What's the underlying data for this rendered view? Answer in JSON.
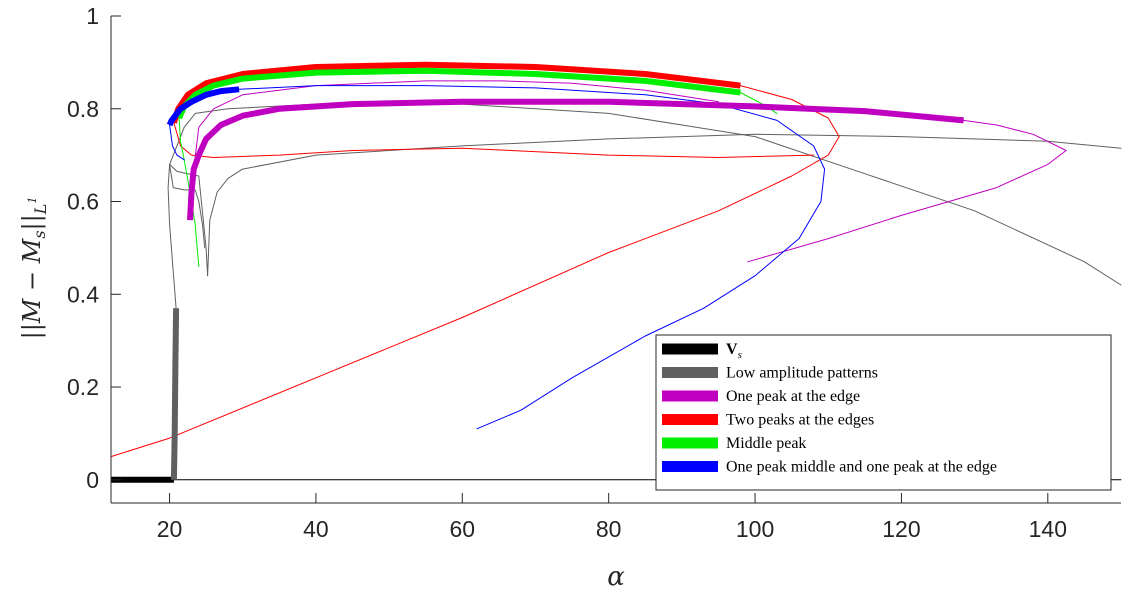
{
  "chart_data": {
    "type": "line",
    "xlabel": "α",
    "ylabel_parts": {
      "bars_open": "||",
      "m": "M",
      "minus": " − ",
      "ms": "M",
      "ms_sub": "s",
      "bars_close": "||",
      "norm_sub": "L",
      "norm_sup": "1"
    },
    "xlim": [
      12,
      150
    ],
    "ylim": [
      -0.05,
      1.0
    ],
    "xticks": [
      20,
      40,
      60,
      80,
      100,
      120,
      140
    ],
    "yticks": [
      0,
      0.2,
      0.4,
      0.6,
      0.8,
      1
    ],
    "ytick_labels": [
      "0",
      "0.2",
      "0.4",
      "0.6",
      "0.8",
      "1"
    ],
    "grid": false,
    "legend_position": "bottom-right",
    "legend": [
      {
        "label": "V",
        "sub": "s",
        "color": "#000000",
        "bold": true
      },
      {
        "label": "Low amplitude patterns",
        "color": "#606060"
      },
      {
        "label": "One peak at the edge",
        "color": "#c000c0"
      },
      {
        "label": "Two peaks at the edges",
        "color": "#ff0000"
      },
      {
        "label": "Middle peak",
        "color": "#00ee00"
      },
      {
        "label": "One peak middle and one peak at the edge",
        "color": "#0000ff"
      }
    ],
    "series": [
      {
        "name": "V",
        "color": "#000000",
        "width": 6,
        "points": [
          [
            12,
            0
          ],
          [
            20.6,
            0
          ]
        ]
      },
      {
        "name": "V",
        "color": "#000000",
        "width": 1,
        "points": [
          [
            20.6,
            0
          ],
          [
            150,
            0
          ]
        ]
      },
      {
        "name": "Low amplitude patterns",
        "color": "#606060",
        "width": 6,
        "points": [
          [
            20.6,
            0
          ],
          [
            20.7,
            0.1
          ],
          [
            20.8,
            0.25
          ],
          [
            20.9,
            0.37
          ]
        ]
      },
      {
        "name": "Low amplitude patterns",
        "color": "#606060",
        "width": 1,
        "points": [
          [
            20.9,
            0.37
          ],
          [
            20.5,
            0.45
          ],
          [
            20,
            0.55
          ],
          [
            19.8,
            0.63
          ],
          [
            20,
            0.68
          ],
          [
            21,
            0.72
          ],
          [
            22,
            0.76
          ],
          [
            23.5,
            0.79
          ],
          [
            28,
            0.8
          ],
          [
            40,
            0.81
          ],
          [
            60,
            0.81
          ],
          [
            80,
            0.79
          ],
          [
            100,
            0.74
          ],
          [
            115,
            0.66
          ],
          [
            130,
            0.58
          ],
          [
            145,
            0.47
          ],
          [
            150,
            0.42
          ]
        ]
      },
      {
        "name": "Low amplitude patterns",
        "color": "#606060",
        "width": 1,
        "points": [
          [
            20,
            0.68
          ],
          [
            21,
            0.665
          ],
          [
            22.5,
            0.66
          ],
          [
            24,
            0.655
          ],
          [
            25,
            0.5
          ],
          [
            25.2,
            0.44
          ]
        ]
      },
      {
        "name": "Low amplitude patterns",
        "color": "#606060",
        "width": 1,
        "points": [
          [
            25.2,
            0.44
          ],
          [
            25.5,
            0.56
          ],
          [
            26.5,
            0.62
          ],
          [
            28,
            0.65
          ],
          [
            30,
            0.67
          ],
          [
            40,
            0.7
          ],
          [
            60,
            0.72
          ],
          [
            80,
            0.735
          ],
          [
            100,
            0.745
          ],
          [
            120,
            0.74
          ],
          [
            140,
            0.73
          ],
          [
            150,
            0.715
          ]
        ]
      },
      {
        "name": "Low amplitude patterns",
        "color": "#606060",
        "width": 1,
        "points": [
          [
            20,
            0.68
          ],
          [
            20.5,
            0.63
          ],
          [
            22,
            0.625
          ],
          [
            23.5,
            0.625
          ],
          [
            24,
            0.6
          ],
          [
            24.5,
            0.55
          ],
          [
            24.8,
            0.5
          ]
        ]
      },
      {
        "name": "One peak at the edge",
        "color": "#c000c0",
        "width": 6,
        "points": [
          [
            22.8,
            0.56
          ],
          [
            23,
            0.62
          ],
          [
            23.3,
            0.67
          ],
          [
            24,
            0.7
          ],
          [
            25,
            0.735
          ],
          [
            27,
            0.765
          ],
          [
            30,
            0.785
          ],
          [
            35,
            0.8
          ],
          [
            45,
            0.81
          ],
          [
            60,
            0.815
          ],
          [
            80,
            0.815
          ],
          [
            100,
            0.805
          ],
          [
            115,
            0.795
          ],
          [
            128.5,
            0.775
          ]
        ]
      },
      {
        "name": "One peak at the edge",
        "color": "#c000c0",
        "width": 1,
        "points": [
          [
            128.5,
            0.775
          ],
          [
            133,
            0.765
          ],
          [
            138,
            0.745
          ],
          [
            142.5,
            0.71
          ],
          [
            140,
            0.68
          ],
          [
            133,
            0.63
          ],
          [
            120,
            0.57
          ],
          [
            110,
            0.52
          ],
          [
            99,
            0.47
          ]
        ]
      },
      {
        "name": "One peak at the edge",
        "color": "#c000c0",
        "width": 1,
        "points": [
          [
            23.3,
            0.67
          ],
          [
            24,
            0.76
          ],
          [
            26,
            0.8
          ],
          [
            30,
            0.83
          ],
          [
            40,
            0.85
          ],
          [
            55,
            0.86
          ],
          [
            65.5,
            0.86
          ]
        ]
      },
      {
        "name": "One peak at the edge",
        "color": "#c000c0",
        "width": 1,
        "points": [
          [
            65.5,
            0.86
          ],
          [
            75,
            0.855
          ],
          [
            85,
            0.84
          ],
          [
            95,
            0.815
          ]
        ]
      },
      {
        "name": "Two peaks at the edges",
        "color": "#ff0000",
        "width": 6,
        "points": [
          [
            20.6,
            0.77
          ],
          [
            21.2,
            0.8
          ],
          [
            22.5,
            0.83
          ],
          [
            25,
            0.855
          ],
          [
            30,
            0.875
          ],
          [
            40,
            0.89
          ],
          [
            55,
            0.895
          ],
          [
            70,
            0.89
          ],
          [
            85,
            0.875
          ],
          [
            98,
            0.85
          ]
        ]
      },
      {
        "name": "Two peaks at the edges",
        "color": "#ff0000",
        "width": 1,
        "points": [
          [
            98,
            0.85
          ],
          [
            105,
            0.82
          ],
          [
            110,
            0.78
          ],
          [
            111.5,
            0.74
          ],
          [
            110,
            0.7
          ],
          [
            105,
            0.655
          ],
          [
            95,
            0.58
          ],
          [
            80,
            0.49
          ],
          [
            60,
            0.35
          ],
          [
            40,
            0.22
          ],
          [
            20,
            0.09
          ],
          [
            12,
            0.05
          ]
        ]
      },
      {
        "name": "Two peaks at the edges",
        "color": "#ff0000",
        "width": 1,
        "points": [
          [
            20.6,
            0.77
          ],
          [
            21.5,
            0.72
          ],
          [
            23,
            0.7
          ],
          [
            26,
            0.695
          ],
          [
            35,
            0.7
          ],
          [
            45,
            0.71
          ],
          [
            60,
            0.715
          ],
          [
            80,
            0.7
          ],
          [
            95,
            0.695
          ],
          [
            108,
            0.7
          ]
        ]
      },
      {
        "name": "Middle peak",
        "color": "#00ee00",
        "width": 6,
        "points": [
          [
            21.3,
            0.78
          ],
          [
            22,
            0.805
          ],
          [
            23.5,
            0.83
          ],
          [
            26,
            0.85
          ],
          [
            30,
            0.865
          ],
          [
            40,
            0.878
          ],
          [
            55,
            0.882
          ],
          [
            70,
            0.875
          ],
          [
            85,
            0.86
          ],
          [
            98,
            0.835
          ]
        ]
      },
      {
        "name": "Middle peak",
        "color": "#00ee00",
        "width": 1,
        "points": [
          [
            98,
            0.835
          ],
          [
            101,
            0.81
          ],
          [
            103,
            0.79
          ]
        ]
      },
      {
        "name": "Middle peak",
        "color": "#00ee00",
        "width": 1,
        "points": [
          [
            21.3,
            0.78
          ],
          [
            21.5,
            0.73
          ],
          [
            22,
            0.69
          ],
          [
            22.8,
            0.62
          ],
          [
            23.5,
            0.55
          ],
          [
            24,
            0.46
          ]
        ]
      },
      {
        "name": "One peak middle and one peak at the edge",
        "color": "#0000ff",
        "width": 6,
        "points": [
          [
            20,
            0.765
          ],
          [
            20.3,
            0.775
          ],
          [
            21.5,
            0.8
          ],
          [
            23,
            0.815
          ],
          [
            25,
            0.83
          ],
          [
            27,
            0.838
          ],
          [
            29.5,
            0.842
          ]
        ]
      },
      {
        "name": "One peak middle and one peak at the edge",
        "color": "#0000ff",
        "width": 1,
        "points": [
          [
            29.5,
            0.842
          ],
          [
            40,
            0.85
          ],
          [
            55,
            0.85
          ],
          [
            70,
            0.845
          ],
          [
            85,
            0.83
          ],
          [
            95,
            0.81
          ],
          [
            103,
            0.775
          ],
          [
            108,
            0.72
          ],
          [
            109.5,
            0.67
          ],
          [
            109,
            0.6
          ],
          [
            106,
            0.52
          ],
          [
            100,
            0.44
          ],
          [
            93,
            0.37
          ],
          [
            85,
            0.31
          ],
          [
            75,
            0.22
          ],
          [
            68,
            0.15
          ],
          [
            62,
            0.11
          ]
        ]
      },
      {
        "name": "One peak middle and one peak at the edge",
        "color": "#0000ff",
        "width": 1,
        "points": [
          [
            20,
            0.765
          ],
          [
            20.4,
            0.72
          ],
          [
            21,
            0.7
          ],
          [
            22,
            0.69
          ]
        ]
      }
    ]
  }
}
